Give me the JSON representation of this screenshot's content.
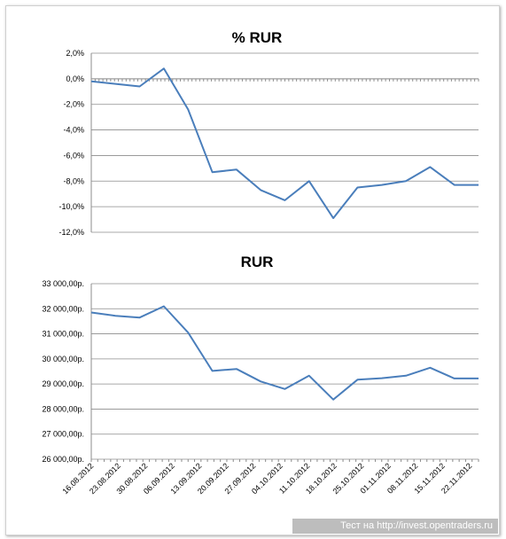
{
  "chart_data": [
    {
      "type": "line",
      "title": "% RUR",
      "xlabel": "",
      "ylabel": "",
      "ylim": [
        -12,
        2
      ],
      "y_ticks": [
        "2,0%",
        "0,0%",
        "-2,0%",
        "-4,0%",
        "-6,0%",
        "-8,0%",
        "-10,0%",
        "-12,0%"
      ],
      "grid": true,
      "legend": "none",
      "x": [
        "16.08.2012",
        "17.08.2012",
        "23.08.2012",
        "30.08.2012",
        "06.09.2012",
        "13.09.2012",
        "20.09.2012",
        "27.09.2012",
        "04.10.2012",
        "11.10.2012",
        "18.10.2012",
        "25.10.2012",
        "01.11.2012",
        "08.11.2012",
        "15.11.2012",
        "22.11.2012",
        "29.11.2012"
      ],
      "values": [
        -0.2,
        -0.4,
        -0.6,
        0.8,
        -2.4,
        -7.3,
        -7.1,
        -8.7,
        -9.5,
        -8.0,
        -10.9,
        -8.5,
        -8.3,
        -8.0,
        -6.9,
        -8.3,
        -8.3
      ]
    },
    {
      "type": "line",
      "title": "RUR",
      "xlabel": "",
      "ylabel": "",
      "ylim": [
        26000,
        33000
      ],
      "y_ticks": [
        "33 000,00р.",
        "32 000,00р.",
        "31 000,00р.",
        "30 000,00р.",
        "29 000,00р.",
        "28 000,00р.",
        "27 000,00р.",
        "26 000,00р."
      ],
      "grid": true,
      "legend": "none",
      "x_ticks": [
        "16.08.2012",
        "23.08.2012",
        "30.08.2012",
        "06.09.2012",
        "13.09.2012",
        "20.09.2012",
        "27.09.2012",
        "04.10.2012",
        "11.10.2012",
        "18.10.2012",
        "25.10.2012",
        "01.11.2012",
        "08.11.2012",
        "15.11.2012",
        "22.11.2012"
      ],
      "x": [
        "16.08.2012",
        "17.08.2012",
        "23.08.2012",
        "30.08.2012",
        "06.09.2012",
        "13.09.2012",
        "20.09.2012",
        "27.09.2012",
        "04.10.2012",
        "11.10.2012",
        "18.10.2012",
        "25.10.2012",
        "01.11.2012",
        "08.11.2012",
        "15.11.2012",
        "22.11.2012",
        "29.11.2012"
      ],
      "values": [
        31850,
        31720,
        31650,
        32100,
        31050,
        29520,
        29600,
        29100,
        28800,
        29330,
        28380,
        29170,
        29230,
        29330,
        29650,
        29220,
        29220
      ]
    }
  ],
  "footer": {
    "text": "Тест на http://invest.opentraders.ru"
  },
  "colors": {
    "series": "#4a7ebb",
    "grid": "#8c8c8c",
    "footer_bg": "#bdbdbd"
  }
}
